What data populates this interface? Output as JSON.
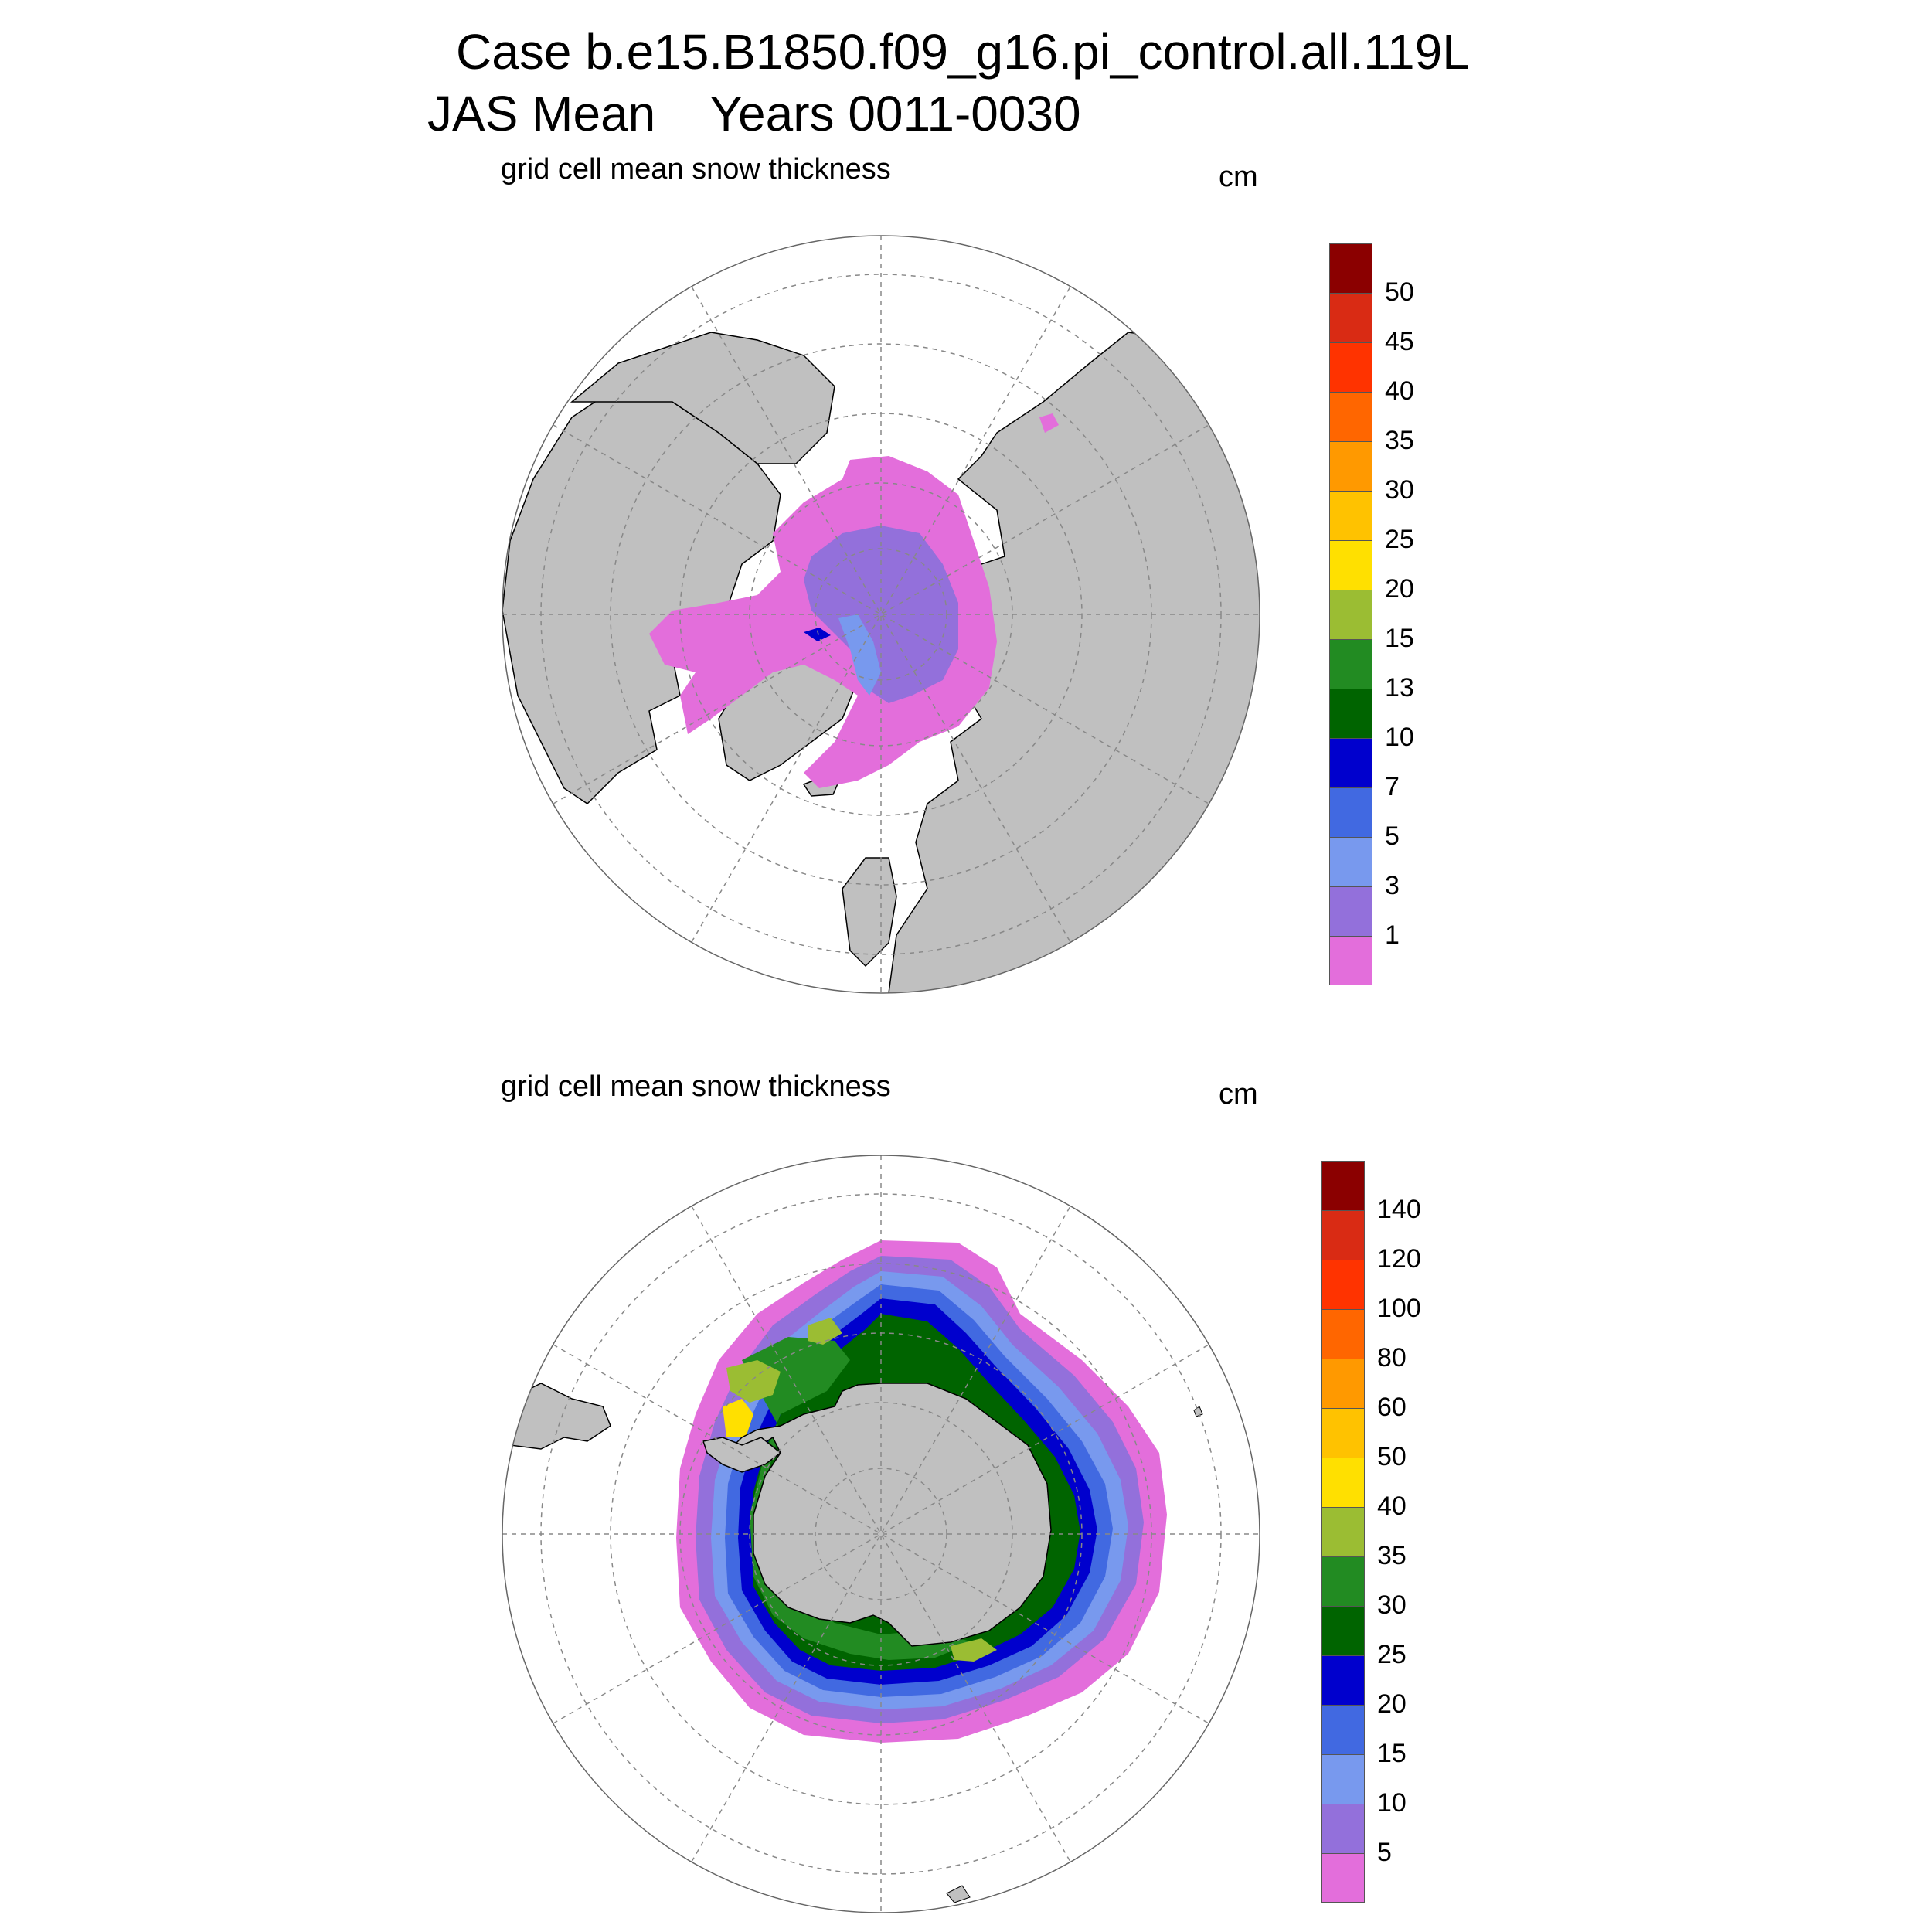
{
  "header": {
    "title_line1": "Case b.e15.B1850.f09_g16.pi_control.all.119L",
    "title_line2": "JAS Mean    Years 0011-0030"
  },
  "panels": [
    {
      "id": "north",
      "title": "grid cell mean snow thickness",
      "unit": "cm",
      "colorbar": {
        "labels": [
          "50",
          "45",
          "40",
          "35",
          "30",
          "25",
          "20",
          "15",
          "13",
          "10",
          "7",
          "5",
          "3",
          "1"
        ],
        "colors": [
          "#8b0000",
          "#d92b14",
          "#ff3300",
          "#ff6600",
          "#ff9900",
          "#ffc200",
          "#ffe000",
          "#9bbd33",
          "#228b22",
          "#006400",
          "#0000cd",
          "#4169e1",
          "#7899ee",
          "#9370db",
          "#e36edb"
        ]
      }
    },
    {
      "id": "south",
      "title": "grid cell mean snow thickness",
      "unit": "cm",
      "colorbar": {
        "labels": [
          "140",
          "120",
          "100",
          "80",
          "60",
          "50",
          "40",
          "35",
          "30",
          "25",
          "20",
          "15",
          "10",
          "5"
        ],
        "colors": [
          "#8b0000",
          "#d92b14",
          "#ff3300",
          "#ff6600",
          "#ff9900",
          "#ffc200",
          "#ffe000",
          "#9bbd33",
          "#228b22",
          "#006400",
          "#0000cd",
          "#4169e1",
          "#7899ee",
          "#9370db",
          "#e36edb"
        ]
      }
    }
  ],
  "colors": {
    "land": "#c0c0c0",
    "ocean": "#ffffff",
    "grid": "#888888"
  }
}
